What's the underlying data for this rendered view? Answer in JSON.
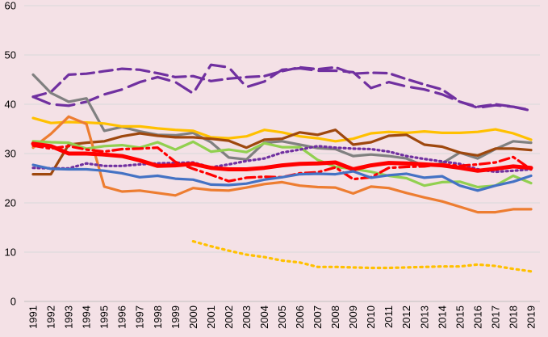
{
  "chart_data": {
    "type": "line",
    "title": "",
    "xlabel": "",
    "ylabel": "",
    "ylim": [
      0,
      60
    ],
    "yticks": [
      0,
      10,
      20,
      30,
      40,
      50,
      60
    ],
    "grid": true,
    "legend": "none",
    "x": [
      "1991",
      "1992",
      "1993",
      "1994",
      "1995",
      "1996",
      "1997",
      "1998",
      "1999",
      "2000",
      "2001",
      "2002",
      "2003",
      "2004",
      "2005",
      "2006",
      "2007",
      "2008",
      "2009",
      "2010",
      "2011",
      "2012",
      "2013",
      "2014",
      "2015",
      "2016",
      "2017",
      "2018",
      "2019"
    ],
    "series": [
      {
        "color": "#7030a0",
        "dash": "long",
        "values": [
          41.5,
          42.5,
          46,
          46.2,
          46.7,
          47.2,
          47,
          46.3,
          45.5,
          45.7,
          44.7,
          45.2,
          45.5,
          45.7,
          46.7,
          47.5,
          47.1,
          47.5,
          46.2,
          46.4,
          46.3,
          45.1,
          44,
          43,
          40.5,
          39.5,
          40,
          39.5,
          38.7
        ]
      },
      {
        "color": "#7030a0",
        "dash": "long2",
        "values": [
          41.5,
          40,
          39.7,
          40.5,
          42,
          43,
          44.5,
          45.5,
          44.5,
          42.2,
          48,
          47.5,
          43.5,
          44.6,
          47,
          47.3,
          46.8,
          46.8,
          46.5,
          43.3,
          44.5,
          43.6,
          43,
          42,
          40.5,
          39.3,
          39.8,
          39.5,
          38.8
        ]
      },
      {
        "color": "#808080",
        "dash": "solid",
        "values": [
          46,
          42.3,
          40.5,
          41.2,
          34.6,
          35.4,
          34.5,
          33.8,
          33.7,
          34.2,
          32.3,
          29.2,
          28.8,
          32.2,
          32.5,
          31.8,
          31.1,
          30.9,
          29.5,
          29.8,
          29.5,
          29,
          27.5,
          28,
          30.2,
          29,
          30.9,
          32.5,
          32.2
        ]
      },
      {
        "color": "#ffc000",
        "dash": "solid",
        "values": [
          37.2,
          36.2,
          36.4,
          36.3,
          36.1,
          35.5,
          35.5,
          35.1,
          34.8,
          34.6,
          33.3,
          33.1,
          33.5,
          34.8,
          34.3,
          33.5,
          33.1,
          32.5,
          33,
          34.1,
          34.4,
          34.2,
          34.5,
          34.2,
          34.2,
          34.4,
          34.9,
          34.1,
          32.8
        ]
      },
      {
        "color": "#9e480e",
        "dash": "solid",
        "values": [
          25.8,
          25.8,
          31.8,
          32.2,
          32.5,
          33.5,
          34.1,
          33.6,
          33.3,
          33.3,
          33,
          32.6,
          31.2,
          32.8,
          33,
          34.3,
          33.8,
          34.8,
          31.8,
          32.3,
          33.6,
          33.8,
          31.8,
          31.4,
          30.2,
          29.6,
          31,
          31,
          30.7
        ]
      },
      {
        "color": "#ed7d31",
        "dash": "solid",
        "values": [
          31.2,
          34,
          37.5,
          36,
          23.3,
          22.3,
          22.5,
          22,
          21.5,
          23,
          22.6,
          22.5,
          23.1,
          23.8,
          24.2,
          23.5,
          23.2,
          23.1,
          21.9,
          23.3,
          23,
          22,
          21.1,
          20.3,
          19.2,
          18.1,
          18.1,
          18.7,
          18.7
        ]
      },
      {
        "color": "#92d050",
        "dash": "solid",
        "values": [
          32.5,
          32.3,
          32.2,
          31,
          31.5,
          31.7,
          31.2,
          32.3,
          30.8,
          32.4,
          30.4,
          30.8,
          30.3,
          32.1,
          31.3,
          31.3,
          28.7,
          27.3,
          26.9,
          26.3,
          25.5,
          25,
          23.5,
          24.2,
          24.3,
          23.2,
          23.5,
          25.5,
          24
        ]
      },
      {
        "color": "#7030a0",
        "dash": "dot",
        "values": [
          27.1,
          27,
          27,
          28,
          27.5,
          27.5,
          27.8,
          28,
          28.1,
          28.2,
          27.2,
          27.8,
          28.5,
          29,
          30.2,
          30.8,
          31.5,
          31.2,
          31,
          30.9,
          30.4,
          29.5,
          28.9,
          28.4,
          27.9,
          26.8,
          26.3,
          26.5,
          26.8
        ]
      },
      {
        "color": "#ff0000",
        "dash": "dashdot",
        "values": [
          31.6,
          31,
          31.5,
          30.8,
          30.4,
          30.9,
          31,
          31.2,
          28.3,
          26.9,
          25.7,
          24.4,
          25.1,
          25.3,
          25.2,
          26,
          26.2,
          27.2,
          24.8,
          25.2,
          27.1,
          27.3,
          27.4,
          27.8,
          27.5,
          27.8,
          28.2,
          29.3,
          26.8
        ]
      },
      {
        "color": "#ff0000",
        "dash": "solid",
        "thick": true,
        "values": [
          32,
          31.5,
          30,
          30,
          29.8,
          29.5,
          28.6,
          27.5,
          27.6,
          27.9,
          27.1,
          26.8,
          26.8,
          27.1,
          27.6,
          27.9,
          28,
          28.2,
          26.8,
          27.6,
          28.1,
          28,
          27.8,
          27.6,
          27.1,
          26.5,
          26.9,
          27.4,
          27.1
        ]
      },
      {
        "color": "#4472c4",
        "dash": "solid",
        "values": [
          27.7,
          26.9,
          26.8,
          26.8,
          26.5,
          26,
          25.2,
          25.5,
          24.9,
          24.7,
          23.7,
          23.6,
          23.9,
          24.7,
          25.2,
          25.8,
          25.9,
          25.8,
          26.4,
          25.1,
          25.6,
          25.9,
          25.1,
          25.4,
          23.5,
          22.5,
          23.5,
          24.3,
          25.5
        ]
      },
      {
        "color": "#ffc000",
        "dash": "dot2",
        "values": [
          null,
          null,
          null,
          null,
          null,
          null,
          null,
          null,
          null,
          12.2,
          11.2,
          10.3,
          9.5,
          9,
          8.3,
          7.9,
          7,
          7,
          6.9,
          6.8,
          6.8,
          6.9,
          7,
          7.1,
          7.1,
          7.5,
          7.2,
          6.6,
          6.1
        ]
      }
    ]
  }
}
